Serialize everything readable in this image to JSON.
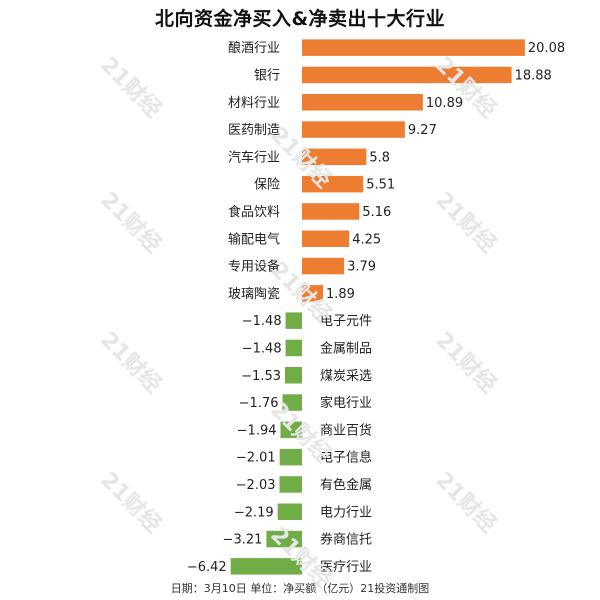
{
  "chart_data": {
    "type": "bar",
    "orientation": "horizontal",
    "title": "北向资金净买入&净卖出十大行业",
    "categories": [
      "酿酒行业",
      "银行",
      "材料行业",
      "医药制造",
      "汽车行业",
      "保险",
      "食品饮料",
      "输配电气",
      "专用设备",
      "玻璃陶瓷",
      "电子元件",
      "金属制品",
      "煤炭采选",
      "家电行业",
      "商业百货",
      "电子信息",
      "有色金属",
      "电力行业",
      "券商信托",
      "医疗行业"
    ],
    "values": [
      20.08,
      18.88,
      10.89,
      9.27,
      5.8,
      5.51,
      5.16,
      4.25,
      3.79,
      1.89,
      -1.48,
      -1.48,
      -1.53,
      -1.76,
      -1.94,
      -2.01,
      -2.03,
      -2.19,
      -3.21,
      -6.42
    ],
    "value_labels": [
      "20.08",
      "18.88",
      "10.89",
      "9.27",
      "5.8",
      "5.51",
      "5.16",
      "4.25",
      "3.79",
      "1.89",
      "−1.48",
      "−1.48",
      "−1.53",
      "−1.76",
      "−1.94",
      "−2.01",
      "−2.03",
      "−2.19",
      "−3.21",
      "−6.42"
    ],
    "colors": {
      "positive": "#ED7D31",
      "negative": "#70AD47"
    },
    "grid": false,
    "legend": "none"
  },
  "footer": "日期：3月10日 单位：净买额（亿元）21投资通制图",
  "watermark": "21财经"
}
